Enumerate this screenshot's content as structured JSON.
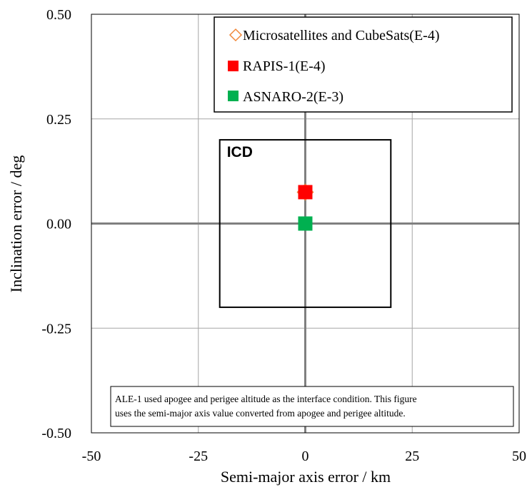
{
  "chart_data": {
    "type": "scatter",
    "xlabel": "Semi-major axis error / km",
    "ylabel": "Inclination error / deg",
    "xlim": [
      -50,
      50
    ],
    "ylim": [
      -0.5,
      0.5
    ],
    "xticks": [
      -50,
      -25,
      0,
      25,
      50
    ],
    "xtick_labels": [
      "-50",
      "-25",
      "0",
      "25",
      "50"
    ],
    "yticks": [
      0.5,
      0.25,
      0.0,
      -0.25,
      -0.5
    ],
    "ytick_labels": [
      "0.50",
      "0.25",
      "0.00",
      "-0.25",
      "-0.50"
    ],
    "grid": true,
    "legend_position": "top-right",
    "series": [
      {
        "name": "Microsatellites and CubeSats(E-4)",
        "marker": "diamond-open",
        "color": "#f0883a",
        "points": [
          [
            0,
            0.075
          ]
        ]
      },
      {
        "name": "RAPIS-1(E-4)",
        "marker": "square",
        "color": "#ff0000",
        "points": [
          [
            0,
            0.075
          ]
        ]
      },
      {
        "name": "ASNARO-2(E-3)",
        "marker": "square",
        "color": "#00b050",
        "points": [
          [
            0,
            0.0
          ]
        ]
      }
    ],
    "icd_box": {
      "label": "ICD",
      "x": [
        -20,
        20
      ],
      "y": [
        -0.2,
        0.2
      ]
    },
    "note": "ALE-1 used apogee and perigee altitude as the interface condition. This figure uses the semi-major axis value converted from apogee and perigee altitude."
  }
}
